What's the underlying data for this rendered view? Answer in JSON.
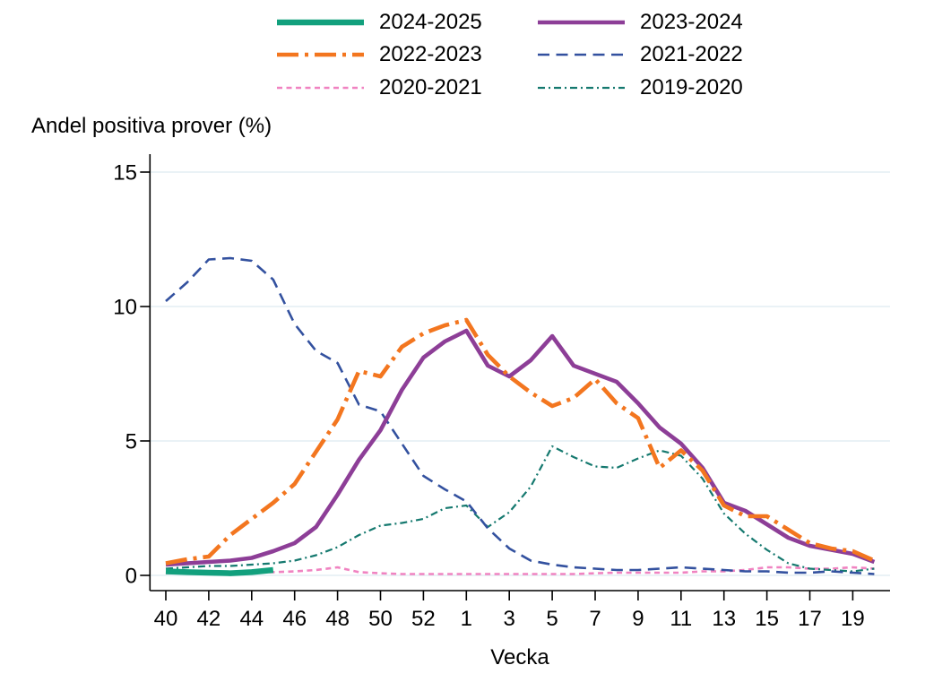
{
  "style": {
    "background": "#ffffff",
    "grid_color": "#e3eef3",
    "axis_color": "#000000",
    "text_color": "#000000"
  },
  "chart_data": {
    "type": "line",
    "title": "Andel positiva prover (%)",
    "xlabel": "Vecka",
    "ylabel": "Andel positiva prover (%)",
    "ylim": [
      0,
      15
    ],
    "yticks": [
      0,
      5,
      10,
      15
    ],
    "grid": "horizontal",
    "legend_position": "top-center",
    "x_categories": [
      "40",
      "41",
      "42",
      "43",
      "44",
      "45",
      "46",
      "47",
      "48",
      "49",
      "50",
      "51",
      "52",
      "53",
      "1",
      "2",
      "3",
      "4",
      "5",
      "6",
      "7",
      "8",
      "9",
      "10",
      "11",
      "12",
      "13",
      "14",
      "15",
      "16",
      "17",
      "18",
      "19",
      "20"
    ],
    "xtick_indices": [
      0,
      2,
      4,
      6,
      8,
      10,
      12,
      14,
      16,
      18,
      20,
      22,
      24,
      26,
      28,
      30,
      32
    ],
    "xtick_labels": [
      "40",
      "42",
      "44",
      "46",
      "48",
      "50",
      "52",
      "1",
      "3",
      "5",
      "7",
      "9",
      "11",
      "13",
      "15",
      "17",
      "19"
    ],
    "series": [
      {
        "name": "2024-2025",
        "color": "#12a07d",
        "dash": "",
        "width": 6.5,
        "values": [
          0.15,
          0.12,
          0.1,
          0.08,
          0.12,
          0.2,
          null,
          null,
          null,
          null,
          null,
          null,
          null,
          null,
          null,
          null,
          null,
          null,
          null,
          null,
          null,
          null,
          null,
          null,
          null,
          null,
          null,
          null,
          null,
          null,
          null,
          null,
          null,
          null
        ]
      },
      {
        "name": "2023-2024",
        "color": "#8d3e97",
        "dash": "",
        "width": 4.6,
        "values": [
          0.4,
          0.45,
          0.5,
          0.55,
          0.65,
          0.9,
          1.2,
          1.8,
          3.0,
          4.3,
          5.4,
          6.9,
          8.1,
          8.7,
          9.1,
          7.8,
          7.4,
          8.0,
          8.9,
          7.8,
          7.5,
          7.2,
          6.4,
          5.5,
          4.9,
          4.0,
          2.7,
          2.4,
          1.9,
          1.4,
          1.1,
          0.95,
          0.8,
          0.5
        ]
      },
      {
        "name": "2022-2023",
        "color": "#f3761f",
        "dash": "24 7 4 7",
        "width": 4.6,
        "values": [
          0.45,
          0.6,
          0.7,
          1.5,
          2.1,
          2.7,
          3.4,
          4.6,
          5.8,
          7.6,
          7.4,
          8.5,
          9.0,
          9.3,
          9.5,
          8.2,
          7.4,
          6.8,
          6.3,
          6.6,
          7.3,
          6.4,
          5.85,
          4.0,
          4.65,
          3.9,
          2.6,
          2.2,
          2.2,
          1.7,
          1.2,
          1.0,
          0.9,
          0.55
        ]
      },
      {
        "name": "2021-2022",
        "color": "#33519f",
        "dash": "13 7.5",
        "width": 2.6,
        "values": [
          10.2,
          10.9,
          11.75,
          11.8,
          11.7,
          11.0,
          9.35,
          8.35,
          7.9,
          6.35,
          6.1,
          4.9,
          3.7,
          3.2,
          2.75,
          1.75,
          1.0,
          0.55,
          0.4,
          0.3,
          0.25,
          0.2,
          0.2,
          0.25,
          0.3,
          0.25,
          0.2,
          0.15,
          0.15,
          0.1,
          0.1,
          0.15,
          0.1,
          0.05
        ]
      },
      {
        "name": "2020-2021",
        "color": "#f083c1",
        "dash": "6 4.5",
        "width": 2.6,
        "values": [
          0.08,
          0.08,
          0.08,
          0.1,
          0.1,
          0.12,
          0.15,
          0.2,
          0.3,
          0.12,
          0.08,
          0.05,
          0.05,
          0.05,
          0.05,
          0.05,
          0.05,
          0.05,
          0.05,
          0.05,
          0.08,
          0.1,
          0.1,
          0.1,
          0.1,
          0.15,
          0.15,
          0.2,
          0.3,
          0.3,
          0.25,
          0.25,
          0.3,
          0.25
        ]
      },
      {
        "name": "2019-2020",
        "color": "#15796f",
        "dash": "8 4 2 4",
        "width": 2.2,
        "values": [
          0.25,
          0.3,
          0.35,
          0.35,
          0.4,
          0.45,
          0.55,
          0.75,
          1.05,
          1.5,
          1.85,
          1.95,
          2.1,
          2.5,
          2.6,
          1.8,
          2.35,
          3.3,
          4.8,
          4.4,
          4.05,
          4.0,
          4.35,
          4.65,
          4.45,
          3.6,
          2.3,
          1.55,
          0.95,
          0.45,
          0.25,
          0.2,
          0.15,
          0.25
        ]
      }
    ]
  }
}
